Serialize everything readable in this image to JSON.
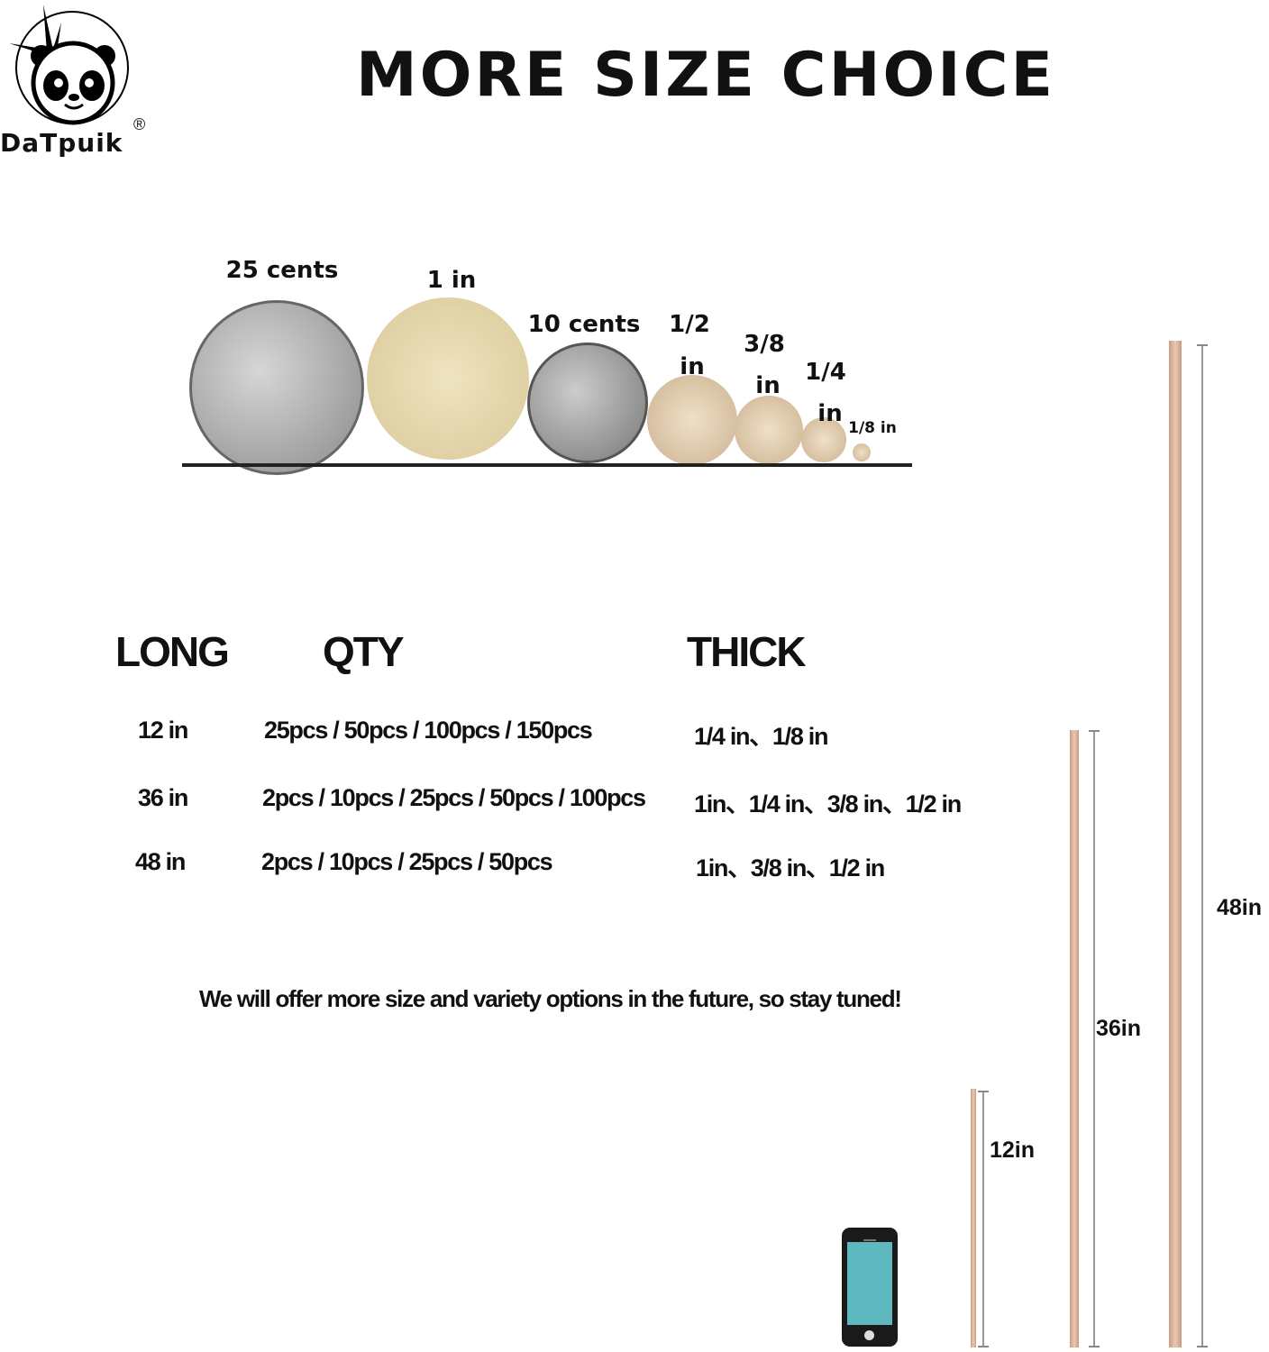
{
  "brand": {
    "name": "DaTpuik",
    "registered": "®"
  },
  "title": "MORE SIZE CHOICE",
  "coins": [
    {
      "label": "25 cents"
    },
    {
      "label": "1 in"
    },
    {
      "label": "10 cents"
    },
    {
      "label": "1/2",
      "label2": "in"
    },
    {
      "label": "3/8",
      "label2": "in"
    },
    {
      "label": "1/4",
      "label2": "in"
    },
    {
      "label": "1/8 in"
    }
  ],
  "table": {
    "headers": [
      "LONG",
      "QTY",
      "THICK"
    ],
    "rows": [
      [
        "12 in",
        "25pcs / 50pcs / 100pcs / 150pcs",
        "1/4 in、1/8 in"
      ],
      [
        "36 in",
        "2pcs / 10pcs / 25pcs / 50pcs / 100pcs",
        "1in、1/4 in、3/8 in、1/2 in"
      ],
      [
        "48 in",
        "2pcs / 10pcs / 25pcs / 50pcs",
        "1in、3/8 in、1/2 in"
      ]
    ]
  },
  "footer": "We will offer more size and variety options in the future, so stay tuned!",
  "dowels": [
    {
      "label": "12in"
    },
    {
      "label": "36in"
    },
    {
      "label": "48in"
    }
  ],
  "colors": {
    "wood": "#d9b49c",
    "phone_screen": "#5fb8bf"
  }
}
